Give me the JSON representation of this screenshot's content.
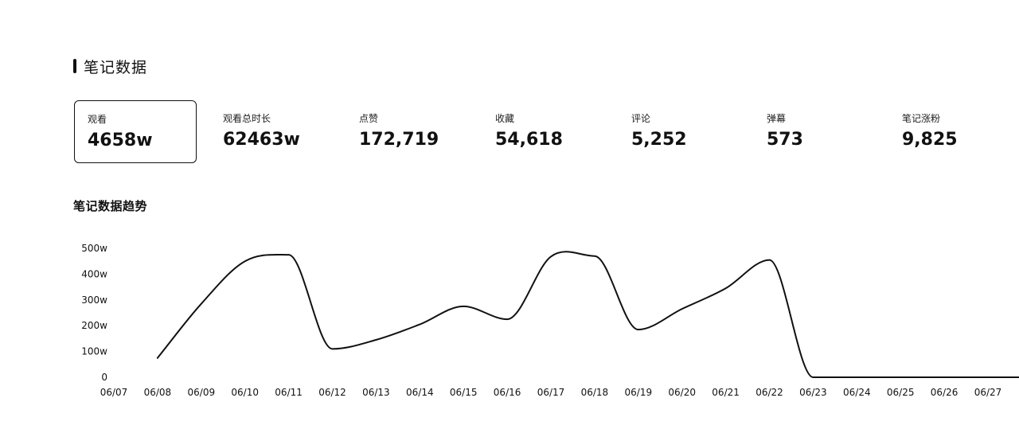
{
  "section": {
    "title": "笔记数据"
  },
  "stats": [
    {
      "label": "观看",
      "value": "4658w",
      "selected": true
    },
    {
      "label": "观看总时长",
      "value": "62463w",
      "selected": false
    },
    {
      "label": "点赞",
      "value": "172,719",
      "selected": false
    },
    {
      "label": "收藏",
      "value": "54,618",
      "selected": false
    },
    {
      "label": "评论",
      "value": "5,252",
      "selected": false
    },
    {
      "label": "弹幕",
      "value": "573",
      "selected": false
    },
    {
      "label": "笔记涨粉",
      "value": "9,825",
      "selected": false
    }
  ],
  "chart_data": {
    "type": "line",
    "title": "笔记数据趋势",
    "y_ticks": [
      "500w",
      "400w",
      "300w",
      "200w",
      "100w",
      "0"
    ],
    "ylim": [
      0,
      500
    ],
    "categories": [
      "06/07",
      "06/08",
      "06/09",
      "06/10",
      "06/11",
      "06/12",
      "06/13",
      "06/14",
      "06/15",
      "06/16",
      "06/17",
      "06/18",
      "06/19",
      "06/20",
      "06/21",
      "06/22",
      "06/23",
      "06/24",
      "06/25",
      "06/26",
      "06/27"
    ],
    "series": [
      {
        "x": [
          "06/08",
          "06/09",
          "06/10",
          "06/11",
          "06/12",
          "06/13",
          "06/14",
          "06/15",
          "06/16",
          "06/17",
          "06/18",
          "06/19",
          "06/20",
          "06/21",
          "06/22",
          "06/23",
          "06/24",
          "06/25",
          "06/26",
          "06/27"
        ],
        "values": [
          75,
          285,
          450,
          475,
          110,
          145,
          205,
          275,
          225,
          468,
          470,
          185,
          265,
          345,
          455,
          0,
          0,
          0,
          0,
          0
        ]
      }
    ],
    "line_color": "#111111",
    "grid": false,
    "legend": "none"
  }
}
